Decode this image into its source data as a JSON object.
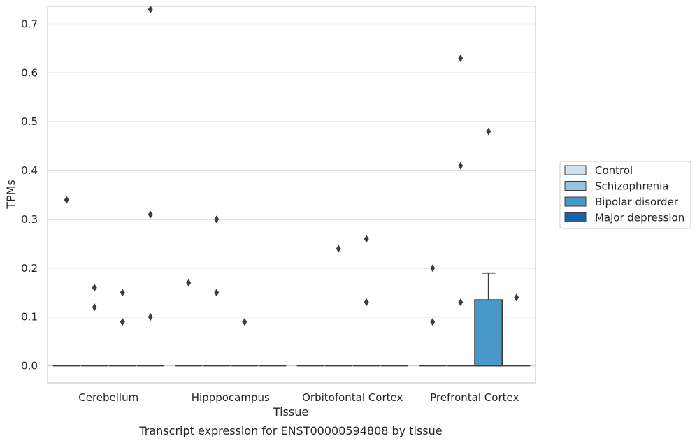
{
  "caption": "Transcript expression for ENST00000594808 by tissue",
  "chart_data": {
    "type": "box",
    "xlabel": "Tissue",
    "ylabel": "TPMs",
    "ylim": [
      -0.036,
      0.77
    ],
    "yticks": [
      "0.0",
      "0.1",
      "0.2",
      "0.3",
      "0.4",
      "0.5",
      "0.6",
      "0.7"
    ],
    "ytick_values": [
      0.0,
      0.1,
      0.2,
      0.3,
      0.4,
      0.5,
      0.6,
      0.7
    ],
    "grid": true,
    "legend_position": "right",
    "categories": [
      "Cerebellum",
      "Hipppocampus",
      "Orbitofontal Cortex",
      "Prefrontal Cortex"
    ],
    "series": [
      {
        "name": "Control",
        "color": "#d0e1f2",
        "boxes": [
          {
            "q1": 0,
            "median": 0,
            "q3": 0,
            "whisker_low": 0,
            "whisker_high": 0,
            "outliers": [
              0.34
            ]
          },
          {
            "q1": 0,
            "median": 0,
            "q3": 0,
            "whisker_low": 0,
            "whisker_high": 0,
            "outliers": [
              0.17
            ]
          },
          {
            "q1": 0,
            "median": 0,
            "q3": 0,
            "whisker_low": 0,
            "whisker_high": 0,
            "outliers": []
          },
          {
            "q1": 0,
            "median": 0,
            "q3": 0,
            "whisker_low": 0,
            "whisker_high": 0,
            "outliers": [
              0.09,
              0.2
            ]
          }
        ]
      },
      {
        "name": "Schizophrenia",
        "color": "#94c4df",
        "boxes": [
          {
            "q1": 0,
            "median": 0,
            "q3": 0,
            "whisker_low": 0,
            "whisker_high": 0,
            "outliers": [
              0.12,
              0.16
            ]
          },
          {
            "q1": 0,
            "median": 0,
            "q3": 0,
            "whisker_low": 0,
            "whisker_high": 0,
            "outliers": [
              0.15,
              0.3
            ]
          },
          {
            "q1": 0,
            "median": 0,
            "q3": 0,
            "whisker_low": 0,
            "whisker_high": 0,
            "outliers": [
              0.24
            ]
          },
          {
            "q1": 0,
            "median": 0,
            "q3": 0,
            "whisker_low": 0,
            "whisker_high": 0,
            "outliers": [
              0.13,
              0.41,
              0.63
            ]
          }
        ]
      },
      {
        "name": "Bipolar disorder",
        "color": "#4a98c9",
        "boxes": [
          {
            "q1": 0,
            "median": 0,
            "q3": 0,
            "whisker_low": 0,
            "whisker_high": 0,
            "outliers": [
              0.09,
              0.15
            ]
          },
          {
            "q1": 0,
            "median": 0,
            "q3": 0,
            "whisker_low": 0,
            "whisker_high": 0,
            "outliers": [
              0.09
            ]
          },
          {
            "q1": 0,
            "median": 0,
            "q3": 0,
            "whisker_low": 0,
            "whisker_high": 0,
            "outliers": [
              0.13,
              0.26
            ]
          },
          {
            "q1": 0,
            "median": 0,
            "q3": 0.135,
            "whisker_low": 0,
            "whisker_high": 0.19,
            "outliers": [
              0.48
            ]
          }
        ]
      },
      {
        "name": "Major depression",
        "color": "#1764ab",
        "boxes": [
          {
            "q1": 0,
            "median": 0,
            "q3": 0,
            "whisker_low": 0,
            "whisker_high": 0,
            "outliers": [
              0.1,
              0.31,
              0.73
            ]
          },
          {
            "q1": 0,
            "median": 0,
            "q3": 0,
            "whisker_low": 0,
            "whisker_high": 0,
            "outliers": []
          },
          {
            "q1": 0,
            "median": 0,
            "q3": 0,
            "whisker_low": 0,
            "whisker_high": 0,
            "outliers": []
          },
          {
            "q1": 0,
            "median": 0,
            "q3": 0,
            "whisker_low": 0,
            "whisker_high": 0,
            "outliers": [
              0.14
            ]
          }
        ]
      }
    ]
  }
}
